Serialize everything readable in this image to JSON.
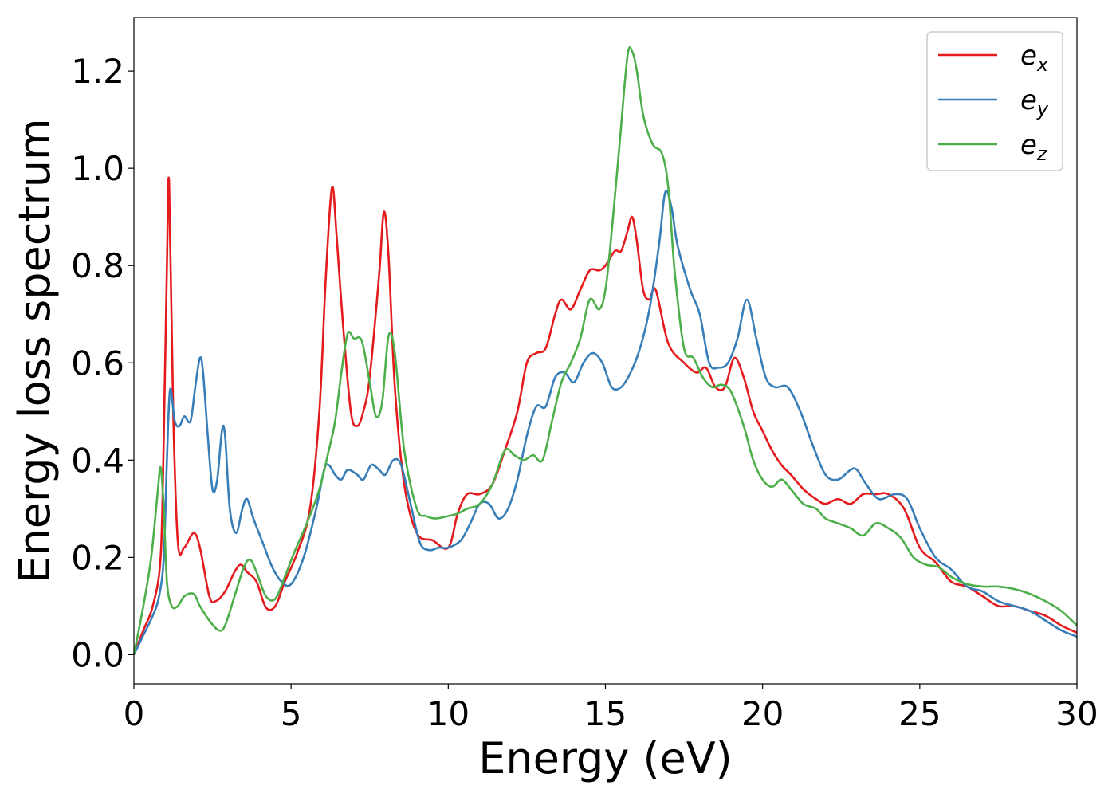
{
  "chart_data": {
    "type": "line",
    "title": "",
    "xlabel": "Energy (eV)",
    "ylabel": "Energy loss spectrum",
    "xlim": [
      0,
      30
    ],
    "ylim": [
      -0.06,
      1.31
    ],
    "xticks": [
      0,
      5,
      10,
      15,
      20,
      25,
      30
    ],
    "xtick_labels": [
      "0",
      "5",
      "10",
      "15",
      "20",
      "25",
      "30"
    ],
    "yticks": [
      0.0,
      0.2,
      0.4,
      0.6,
      0.8,
      1.0,
      1.2
    ],
    "ytick_labels": [
      "0.0",
      "0.2",
      "0.4",
      "0.6",
      "0.8",
      "1.0",
      "1.2"
    ],
    "grid": false,
    "legend": {
      "position": "top-right"
    },
    "series": [
      {
        "name": "e_x",
        "base": "e",
        "sub": "x",
        "color": "#e41a1c",
        "x": [
          0,
          0.3,
          0.6,
          0.85,
          0.95,
          1.05,
          1.12,
          1.25,
          1.4,
          1.6,
          1.9,
          2.1,
          2.4,
          2.6,
          2.9,
          3.2,
          3.4,
          3.6,
          3.9,
          4.2,
          4.5,
          4.8,
          5.2,
          5.6,
          5.9,
          6.1,
          6.3,
          6.45,
          6.65,
          6.9,
          7.1,
          7.3,
          7.5,
          7.8,
          7.95,
          8.1,
          8.3,
          8.6,
          9.0,
          9.5,
          10.0,
          10.3,
          10.6,
          11.0,
          11.4,
          11.8,
          12.2,
          12.5,
          12.8,
          13.1,
          13.4,
          13.6,
          13.9,
          14.2,
          14.5,
          14.8,
          15.0,
          15.3,
          15.5,
          15.7,
          15.85,
          16.0,
          16.2,
          16.4,
          16.6,
          17.0,
          17.5,
          17.9,
          18.2,
          18.5,
          18.8,
          19.1,
          19.4,
          19.7,
          20.0,
          20.3,
          20.6,
          20.9,
          21.3,
          21.7,
          22.0,
          22.4,
          22.8,
          23.2,
          23.6,
          24.0,
          24.5,
          25.0,
          25.5,
          26.0,
          26.5,
          27.0,
          27.5,
          28.0,
          28.5,
          29.0,
          29.5,
          30.0
        ],
        "y": [
          0.0,
          0.05,
          0.1,
          0.2,
          0.45,
          0.8,
          0.97,
          0.5,
          0.23,
          0.22,
          0.25,
          0.22,
          0.12,
          0.11,
          0.13,
          0.17,
          0.185,
          0.17,
          0.15,
          0.097,
          0.1,
          0.15,
          0.21,
          0.3,
          0.5,
          0.77,
          0.96,
          0.86,
          0.68,
          0.5,
          0.47,
          0.5,
          0.57,
          0.78,
          0.91,
          0.82,
          0.55,
          0.35,
          0.25,
          0.235,
          0.22,
          0.29,
          0.33,
          0.33,
          0.35,
          0.42,
          0.5,
          0.6,
          0.62,
          0.63,
          0.7,
          0.73,
          0.71,
          0.75,
          0.79,
          0.79,
          0.8,
          0.83,
          0.83,
          0.87,
          0.9,
          0.85,
          0.75,
          0.73,
          0.75,
          0.64,
          0.6,
          0.58,
          0.59,
          0.55,
          0.55,
          0.61,
          0.57,
          0.5,
          0.46,
          0.42,
          0.39,
          0.37,
          0.34,
          0.32,
          0.31,
          0.32,
          0.31,
          0.33,
          0.33,
          0.33,
          0.3,
          0.22,
          0.19,
          0.15,
          0.14,
          0.12,
          0.1,
          0.1,
          0.09,
          0.08,
          0.06,
          0.045
        ]
      },
      {
        "name": "e_y",
        "base": "e",
        "sub": "y",
        "color": "#377eb8",
        "x": [
          0,
          0.3,
          0.6,
          0.8,
          0.95,
          1.05,
          1.15,
          1.3,
          1.45,
          1.6,
          1.8,
          1.95,
          2.1,
          2.2,
          2.35,
          2.5,
          2.65,
          2.8,
          2.9,
          3.05,
          3.25,
          3.45,
          3.6,
          3.8,
          4.1,
          4.4,
          4.7,
          5.0,
          5.4,
          5.8,
          6.05,
          6.2,
          6.4,
          6.6,
          6.8,
          7.1,
          7.3,
          7.55,
          7.8,
          8.0,
          8.25,
          8.5,
          8.8,
          9.1,
          9.4,
          9.7,
          10.0,
          10.4,
          10.7,
          11.0,
          11.3,
          11.6,
          11.9,
          12.2,
          12.5,
          12.8,
          13.1,
          13.4,
          13.7,
          14.0,
          14.3,
          14.6,
          14.9,
          15.2,
          15.5,
          15.8,
          16.1,
          16.4,
          16.7,
          16.9,
          17.1,
          17.3,
          17.7,
          18.0,
          18.3,
          18.6,
          18.9,
          19.2,
          19.5,
          19.8,
          20.1,
          20.4,
          20.8,
          21.2,
          21.6,
          22.0,
          22.4,
          22.8,
          23.0,
          23.3,
          23.7,
          24.2,
          24.6,
          25.0,
          25.5,
          26.0,
          26.5,
          27.0,
          27.5,
          28.0,
          28.5,
          29.0,
          29.5,
          30.0
        ],
        "y": [
          0.0,
          0.04,
          0.08,
          0.12,
          0.2,
          0.4,
          0.545,
          0.48,
          0.47,
          0.49,
          0.48,
          0.55,
          0.61,
          0.58,
          0.45,
          0.34,
          0.36,
          0.46,
          0.45,
          0.3,
          0.25,
          0.3,
          0.32,
          0.28,
          0.23,
          0.18,
          0.15,
          0.145,
          0.2,
          0.3,
          0.38,
          0.39,
          0.37,
          0.36,
          0.38,
          0.37,
          0.36,
          0.39,
          0.38,
          0.37,
          0.4,
          0.39,
          0.31,
          0.23,
          0.215,
          0.22,
          0.22,
          0.235,
          0.27,
          0.31,
          0.31,
          0.28,
          0.3,
          0.36,
          0.45,
          0.51,
          0.51,
          0.57,
          0.58,
          0.56,
          0.6,
          0.62,
          0.6,
          0.55,
          0.55,
          0.58,
          0.63,
          0.71,
          0.84,
          0.95,
          0.92,
          0.84,
          0.75,
          0.7,
          0.6,
          0.59,
          0.6,
          0.65,
          0.73,
          0.65,
          0.57,
          0.55,
          0.55,
          0.5,
          0.43,
          0.37,
          0.36,
          0.38,
          0.38,
          0.35,
          0.32,
          0.33,
          0.32,
          0.26,
          0.2,
          0.175,
          0.14,
          0.13,
          0.11,
          0.1,
          0.09,
          0.07,
          0.05,
          0.037
        ]
      },
      {
        "name": "e_z",
        "base": "e",
        "sub": "z",
        "color": "#4daf4a",
        "x": [
          0,
          0.3,
          0.55,
          0.75,
          0.85,
          0.95,
          1.05,
          1.2,
          1.4,
          1.6,
          1.9,
          2.1,
          2.4,
          2.7,
          2.9,
          3.2,
          3.5,
          3.7,
          3.9,
          4.2,
          4.5,
          4.8,
          5.1,
          5.5,
          5.9,
          6.2,
          6.4,
          6.6,
          6.8,
          7.0,
          7.25,
          7.5,
          7.7,
          7.9,
          8.1,
          8.3,
          8.6,
          9.0,
          9.3,
          9.6,
          10.0,
          10.3,
          10.6,
          11.0,
          11.4,
          11.8,
          12.1,
          12.4,
          12.7,
          13.0,
          13.3,
          13.6,
          13.9,
          14.2,
          14.5,
          14.8,
          15.0,
          15.2,
          15.45,
          15.7,
          15.85,
          16.0,
          16.2,
          16.5,
          16.8,
          17.0,
          17.2,
          17.5,
          17.8,
          18.1,
          18.4,
          18.7,
          19.0,
          19.4,
          19.7,
          20.0,
          20.3,
          20.6,
          20.9,
          21.3,
          21.7,
          22.0,
          22.4,
          22.8,
          23.2,
          23.6,
          24.0,
          24.4,
          24.8,
          25.2,
          25.6,
          26.0,
          26.5,
          27.0,
          27.5,
          28.0,
          28.5,
          29.0,
          29.5,
          30.0
        ],
        "y": [
          0.0,
          0.1,
          0.2,
          0.33,
          0.385,
          0.3,
          0.15,
          0.1,
          0.1,
          0.12,
          0.125,
          0.1,
          0.07,
          0.05,
          0.06,
          0.12,
          0.18,
          0.195,
          0.17,
          0.12,
          0.115,
          0.16,
          0.21,
          0.27,
          0.34,
          0.42,
          0.48,
          0.58,
          0.66,
          0.65,
          0.645,
          0.56,
          0.49,
          0.52,
          0.655,
          0.62,
          0.42,
          0.3,
          0.285,
          0.28,
          0.285,
          0.29,
          0.3,
          0.31,
          0.35,
          0.42,
          0.41,
          0.4,
          0.41,
          0.4,
          0.48,
          0.56,
          0.6,
          0.65,
          0.73,
          0.71,
          0.75,
          0.87,
          1.05,
          1.23,
          1.24,
          1.2,
          1.11,
          1.05,
          1.03,
          0.96,
          0.79,
          0.63,
          0.61,
          0.57,
          0.55,
          0.555,
          0.54,
          0.47,
          0.4,
          0.36,
          0.345,
          0.36,
          0.34,
          0.31,
          0.3,
          0.28,
          0.27,
          0.26,
          0.245,
          0.27,
          0.26,
          0.24,
          0.2,
          0.185,
          0.18,
          0.16,
          0.145,
          0.14,
          0.14,
          0.135,
          0.125,
          0.11,
          0.09,
          0.06
        ]
      }
    ]
  }
}
